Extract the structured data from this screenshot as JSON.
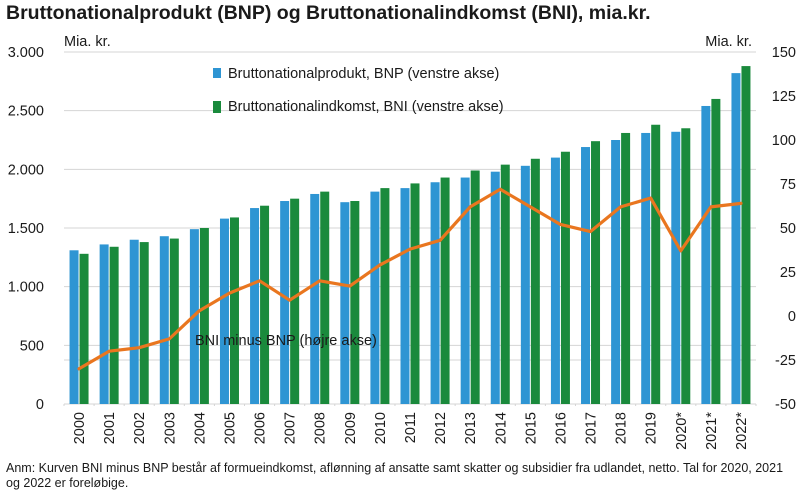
{
  "title": "Bruttonationalprodukt (BNP) og Bruttonationalindkomst (BNI), mia.kr.",
  "note": "Anm: Kurven BNI minus BNP består af formueindkomst, aflønning af ansatte samt skatter og subsidier fra udlandet, netto. Tal for 2020, 2021 og 2022 er foreløbige.",
  "colors": {
    "bnp": "#2e95d3",
    "bni": "#1a8a3c",
    "line": "#e9761f",
    "grid": "#d4d4d4",
    "text": "#1a1a1a"
  },
  "chart_data": {
    "type": "bar",
    "categories": [
      "2000",
      "2001",
      "2002",
      "2003",
      "2004",
      "2005",
      "2006",
      "2007",
      "2008",
      "2009",
      "2010",
      "2011",
      "2012",
      "2013",
      "2014",
      "2015",
      "2016",
      "2017",
      "2018",
      "2019",
      "2020*",
      "2021*",
      "2022*"
    ],
    "left_axis": {
      "label": "Mia. kr.",
      "ylim": [
        0,
        3000
      ],
      "ticks": [
        0,
        500,
        1000,
        1500,
        2000,
        2500,
        3000
      ],
      "tick_labels": [
        "0",
        "500",
        "1.000",
        "1.500",
        "2.000",
        "2.500",
        "3.000"
      ]
    },
    "right_axis": {
      "label": "Mia. kr.",
      "ylim": [
        -50,
        150
      ],
      "ticks": [
        -50,
        -25,
        0,
        25,
        50,
        75,
        100,
        125,
        150
      ],
      "tick_labels": [
        "-50",
        "-25",
        "0",
        "25",
        "50",
        "75",
        "100",
        "125",
        "150"
      ]
    },
    "grid": true,
    "legend_position": "top-left",
    "series": [
      {
        "name": "Bruttonationalprodukt, BNP (venstre akse)",
        "type": "bar",
        "axis": "left",
        "values": [
          1310,
          1360,
          1400,
          1430,
          1490,
          1580,
          1670,
          1730,
          1790,
          1720,
          1810,
          1840,
          1890,
          1930,
          1980,
          2030,
          2100,
          2190,
          2250,
          2310,
          2320,
          2540,
          2820
        ]
      },
      {
        "name": "Bruttonationalindkomst, BNI (venstre akse)",
        "type": "bar",
        "axis": "left",
        "values": [
          1280,
          1340,
          1380,
          1410,
          1500,
          1590,
          1690,
          1750,
          1810,
          1730,
          1840,
          1880,
          1930,
          1990,
          2040,
          2090,
          2150,
          2240,
          2310,
          2380,
          2350,
          2600,
          2880
        ]
      },
      {
        "name": "BNI minus BNP (højre akse)",
        "type": "line",
        "axis": "right",
        "values": [
          -30,
          -20,
          -18,
          -13,
          3,
          13,
          20,
          9,
          20,
          17,
          29,
          38,
          43,
          62,
          72,
          62,
          52,
          48,
          62,
          67,
          37,
          62,
          64
        ]
      }
    ]
  }
}
